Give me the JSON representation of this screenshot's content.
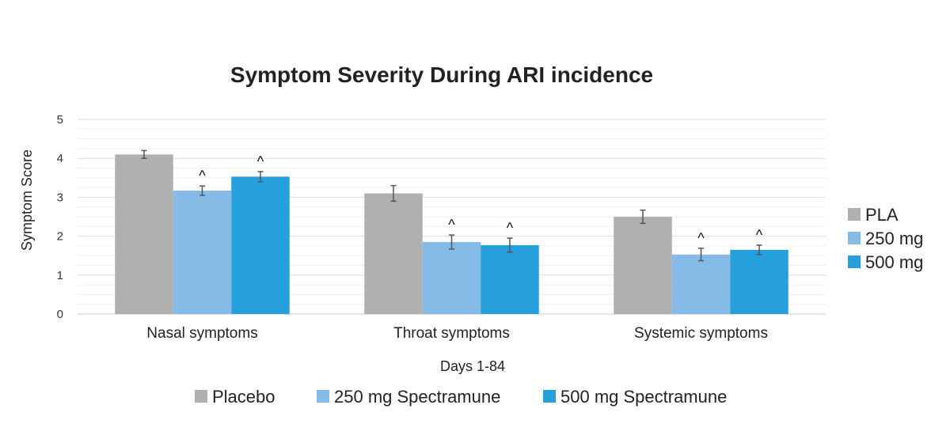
{
  "chart_data": {
    "type": "bar",
    "title": "Symptom Severity During ARI incidence",
    "xlabel": "Days 1-84",
    "ylabel": "Symptom Score",
    "ylim": [
      0,
      5
    ],
    "yticks": [
      0,
      1,
      2,
      3,
      4,
      5
    ],
    "grid": true,
    "categories": [
      "Nasal symptoms",
      "Throat symptoms",
      "Systemic symptoms"
    ],
    "series": [
      {
        "name": "PLA",
        "color": "#b0b0b0",
        "values": [
          4.1,
          3.1,
          2.5
        ],
        "error": [
          0.1,
          0.2,
          0.17
        ],
        "markers": [
          "",
          "",
          ""
        ]
      },
      {
        "name": "250 mg",
        "color": "#85bbe6",
        "values": [
          3.17,
          1.85,
          1.53
        ],
        "error": [
          0.12,
          0.18,
          0.16
        ],
        "markers": [
          "^",
          "^",
          "^"
        ]
      },
      {
        "name": "500 mg",
        "color": "#25a0dc",
        "values": [
          3.53,
          1.77,
          1.65
        ],
        "error": [
          0.13,
          0.18,
          0.12
        ],
        "markers": [
          "^",
          "^",
          "^"
        ]
      }
    ],
    "legend_right": [
      "PLA",
      "250 mg",
      "500 mg"
    ],
    "legend_bottom": [
      "Placebo",
      "250 mg Spectramune",
      "500 mg Spectramune"
    ],
    "legend_placement": "right and bottom"
  }
}
